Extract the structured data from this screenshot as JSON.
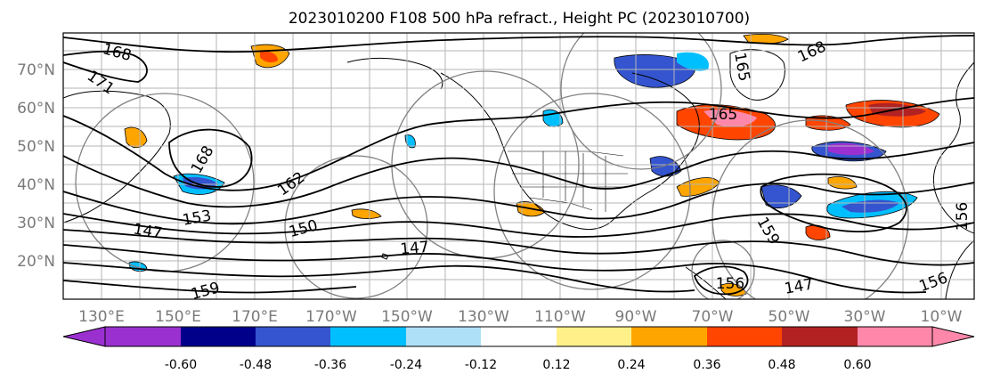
{
  "map": {
    "title": "2023010200 F108 500 hPa refract., Height PC (2023010700)",
    "lat_labels": [
      "70°N",
      "60°N",
      "50°N",
      "40°N",
      "30°N",
      "20°N"
    ],
    "lon_labels": [
      "130°E",
      "150°E",
      "170°E",
      "170°W",
      "150°W",
      "130°W",
      "110°W",
      "90°W",
      "70°W",
      "50°W",
      "30°W",
      "10°W"
    ],
    "contour_labels": [
      "168",
      "171",
      "168",
      "162",
      "153",
      "147",
      "150",
      "147",
      "168",
      "165",
      "165",
      "159",
      "156",
      "156",
      "147",
      "159",
      "156"
    ],
    "colorbar": {
      "ticks": [
        "-0.60",
        "-0.48",
        "-0.36",
        "-0.24",
        "-0.12",
        "0.12",
        "0.24",
        "0.36",
        "0.48",
        "0.60"
      ],
      "colors": [
        "#9b30d0",
        "#00008b",
        "#3455cf",
        "#00bfff",
        "#aee0f8",
        "#ffffff",
        "#fff08a",
        "#ffa500",
        "#ff4500",
        "#b22222",
        "#ff88aa"
      ]
    }
  }
}
